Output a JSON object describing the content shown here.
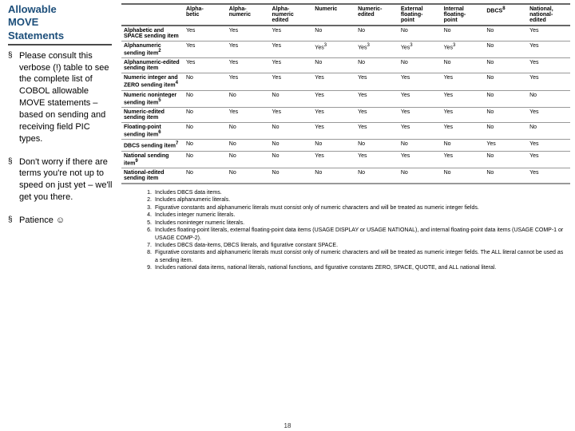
{
  "heading_color": "#1c4e7a",
  "heading_lines": [
    "Allowable",
    "MOVE",
    "Statements"
  ],
  "bullets": [
    "Please consult this verbose (!) table to see the complete list of COBOL allowable MOVE statements – based on sending and receiving field PIC types.",
    "Don't worry if there are terms you're not up to speed on just yet – we'll get you there.",
    "Patience ☺"
  ],
  "columns": [
    "Alpha-\nbetic",
    "Alpha-\nnumeric",
    "Alpha-\nnumeric\nedited",
    "Numeric",
    "Numeric-\nedited",
    "External\nfloating-\npoint",
    "Internal\nfloating-\npoint",
    "DBCS|8",
    "National,\nnational-\nedited"
  ],
  "rows": [
    {
      "label": "Alphabetic and SPACE sending item",
      "cells": [
        "Yes",
        "Yes",
        "Yes",
        "No",
        "No",
        "No",
        "No",
        "No",
        "Yes"
      ]
    },
    {
      "label": "Alphanumeric sending item|2",
      "cells": [
        "Yes",
        "Yes",
        "Yes",
        "Yes|3",
        "Yes|3",
        "Yes|3",
        "Yes|3",
        "No",
        "Yes"
      ]
    },
    {
      "label": "Alphanumeric-edited sending item",
      "cells": [
        "Yes",
        "Yes",
        "Yes",
        "No",
        "No",
        "No",
        "No",
        "No",
        "Yes"
      ]
    },
    {
      "label": "Numeric integer and ZERO sending item|4",
      "cells": [
        "No",
        "Yes",
        "Yes",
        "Yes",
        "Yes",
        "Yes",
        "Yes",
        "No",
        "Yes"
      ]
    },
    {
      "label": "Numeric noninteger sending item|5",
      "cells": [
        "No",
        "No",
        "No",
        "Yes",
        "Yes",
        "Yes",
        "Yes",
        "No",
        "No"
      ]
    },
    {
      "label": "Numeric-edited sending item",
      "cells": [
        "No",
        "Yes",
        "Yes",
        "Yes",
        "Yes",
        "Yes",
        "Yes",
        "No",
        "Yes"
      ]
    },
    {
      "label": "Floating-point sending item|6",
      "cells": [
        "No",
        "No",
        "No",
        "Yes",
        "Yes",
        "Yes",
        "Yes",
        "No",
        "No"
      ]
    },
    {
      "label": "DBCS sending item|7",
      "cells": [
        "No",
        "No",
        "No",
        "No",
        "No",
        "No",
        "No",
        "Yes",
        "Yes"
      ]
    },
    {
      "label": "National sending item|9",
      "cells": [
        "No",
        "No",
        "No",
        "Yes",
        "Yes",
        "Yes",
        "Yes",
        "No",
        "Yes"
      ]
    },
    {
      "label": "National-edited sending item",
      "cells": [
        "No",
        "No",
        "No",
        "No",
        "No",
        "No",
        "No",
        "No",
        "Yes"
      ]
    }
  ],
  "footnotes": [
    "Includes DBCS data items.",
    "Includes alphanumeric literals.",
    "Figurative constants and alphanumeric literals must consist only of numeric characters and will be treated as numeric integer fields.",
    "Includes integer numeric literals.",
    "Includes noninteger numeric literals.",
    "Includes floating-point literals, external floating-point data items (USAGE DISPLAY or USAGE NATIONAL), and internal floating-point data items (USAGE COMP-1 or USAGE COMP-2).",
    "Includes DBCS data-items, DBCS literals, and figurative constant SPACE.",
    "Figurative constants and alphanumeric literals must consist only of numeric characters and will be treated as numeric integer fields. The ALL literal cannot be used as a sending item.",
    "Includes national data items, national literals, national functions, and figurative constants ZERO, SPACE, QUOTE, and ALL national literal."
  ],
  "page_number": "18"
}
